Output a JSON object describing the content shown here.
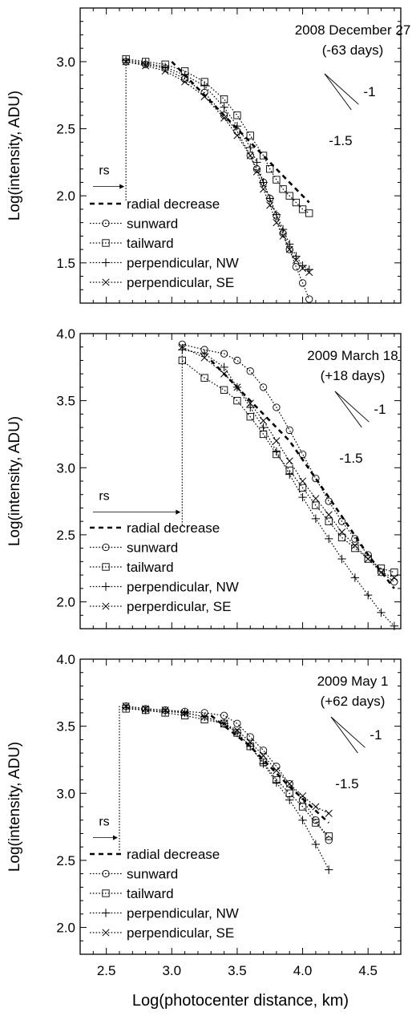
{
  "figure": {
    "xlabel": "Log(photocenter distance, km)",
    "x_ticks": [
      2.5,
      3.0,
      3.5,
      4.0,
      4.5
    ],
    "x_tick_labels": [
      "2.5",
      "3.0",
      "3.5",
      "4.0",
      "4.5"
    ]
  },
  "chart_data": [
    {
      "type": "line",
      "title": "2008 December 27",
      "subtitle": "(-63 days)",
      "ylabel": "Log(intensity, ADU)",
      "xlim": [
        2.3,
        4.75
      ],
      "ylim": [
        1.2,
        3.4
      ],
      "y_ticks": [
        1.5,
        2.0,
        2.5,
        3.0
      ],
      "y_tick_labels": [
        "1.5",
        "2.0",
        "2.5",
        "3.0"
      ],
      "grid": false,
      "legend_position": "bottom-left",
      "rs_label": "rs",
      "rs_x": 2.65,
      "slopes": [
        {
          "label": "-1",
          "slope": -1
        },
        {
          "label": "-1.5",
          "slope": -1.5
        }
      ],
      "series": [
        {
          "name": "radial decrease",
          "style": "dashed",
          "marker": "none",
          "x": [
            3.0,
            3.3,
            3.6,
            3.9,
            4.05
          ],
          "y": [
            3.0,
            2.7,
            2.4,
            2.1,
            1.95
          ]
        },
        {
          "name": "sunward",
          "style": "dotted",
          "marker": "circle",
          "x": [
            2.65,
            2.8,
            2.95,
            3.1,
            3.25,
            3.4,
            3.5,
            3.6,
            3.65,
            3.7,
            3.75,
            3.8,
            3.85,
            3.9,
            3.95,
            4.0,
            4.05
          ],
          "y": [
            3.0,
            2.98,
            2.95,
            2.87,
            2.77,
            2.6,
            2.48,
            2.3,
            2.2,
            2.1,
            1.98,
            1.85,
            1.72,
            1.6,
            1.47,
            1.35,
            1.23
          ]
        },
        {
          "name": "tailward",
          "style": "dotted",
          "marker": "square",
          "x": [
            2.65,
            2.8,
            2.95,
            3.1,
            3.25,
            3.4,
            3.5,
            3.6,
            3.7,
            3.75,
            3.8,
            3.85,
            3.9,
            3.95,
            4.0,
            4.05
          ],
          "y": [
            3.02,
            3.0,
            2.98,
            2.93,
            2.85,
            2.72,
            2.6,
            2.45,
            2.3,
            2.2,
            2.12,
            2.05,
            2.0,
            1.95,
            1.9,
            1.87
          ]
        },
        {
          "name": "perpendicular, NW",
          "style": "dotted",
          "marker": "plus",
          "x": [
            2.65,
            2.8,
            2.95,
            3.1,
            3.25,
            3.4,
            3.5,
            3.6,
            3.65,
            3.7,
            3.75,
            3.8,
            3.85,
            3.9,
            3.95,
            4.0,
            4.05
          ],
          "y": [
            3.01,
            2.99,
            2.96,
            2.9,
            2.82,
            2.66,
            2.52,
            2.36,
            2.25,
            2.1,
            1.98,
            1.86,
            1.75,
            1.64,
            1.55,
            1.48,
            1.45
          ]
        },
        {
          "name": "perpendicular, SE",
          "style": "dotted",
          "marker": "x",
          "x": [
            2.65,
            2.8,
            2.95,
            3.1,
            3.25,
            3.4,
            3.5,
            3.6,
            3.65,
            3.7,
            3.75,
            3.8,
            3.85,
            3.9,
            3.95,
            4.0,
            4.05
          ],
          "y": [
            3.0,
            2.97,
            2.93,
            2.85,
            2.74,
            2.58,
            2.45,
            2.3,
            2.18,
            2.05,
            1.93,
            1.8,
            1.7,
            1.6,
            1.52,
            1.46,
            1.43
          ]
        }
      ]
    },
    {
      "type": "line",
      "title": "2009 March 18",
      "subtitle": "(+18 days)",
      "ylabel": "Log(intensity, ADU)",
      "xlim": [
        2.3,
        4.75
      ],
      "ylim": [
        1.8,
        4.0
      ],
      "y_ticks": [
        2.0,
        2.5,
        3.0,
        3.5,
        4.0
      ],
      "y_tick_labels": [
        "2.0",
        "2.5",
        "3.0",
        "3.5",
        "4.0"
      ],
      "grid": false,
      "legend_position": "bottom-left",
      "rs_label": "rs",
      "rs_x": 3.08,
      "slopes": [
        {
          "label": "-1",
          "slope": -1
        },
        {
          "label": "-1.5",
          "slope": -1.5
        }
      ],
      "series": [
        {
          "name": "radial decrease",
          "style": "dashed",
          "marker": "none",
          "x": [
            3.3,
            3.6,
            3.9,
            4.2,
            4.5,
            4.7
          ],
          "y": [
            3.8,
            3.5,
            3.2,
            2.78,
            2.35,
            2.1
          ]
        },
        {
          "name": "sunward",
          "style": "dotted",
          "marker": "circle",
          "x": [
            3.08,
            3.25,
            3.4,
            3.5,
            3.6,
            3.7,
            3.8,
            3.9,
            4.0,
            4.1,
            4.2,
            4.3,
            4.4,
            4.5,
            4.6,
            4.7
          ],
          "y": [
            3.92,
            3.88,
            3.85,
            3.8,
            3.72,
            3.6,
            3.45,
            3.28,
            3.1,
            2.92,
            2.75,
            2.6,
            2.47,
            2.35,
            2.22,
            2.15
          ]
        },
        {
          "name": "tailward",
          "style": "dotted",
          "marker": "square",
          "x": [
            3.08,
            3.25,
            3.4,
            3.5,
            3.6,
            3.7,
            3.8,
            3.9,
            4.0,
            4.1,
            4.2,
            4.3,
            4.4,
            4.5,
            4.6,
            4.7
          ],
          "y": [
            3.8,
            3.67,
            3.58,
            3.5,
            3.38,
            3.25,
            3.1,
            2.98,
            2.85,
            2.72,
            2.6,
            2.48,
            2.4,
            2.32,
            2.25,
            2.22
          ]
        },
        {
          "name": "perpendicular, NW",
          "style": "dotted",
          "marker": "plus",
          "x": [
            3.08,
            3.25,
            3.4,
            3.5,
            3.6,
            3.7,
            3.8,
            3.9,
            4.0,
            4.1,
            4.2,
            4.3,
            4.4,
            4.5,
            4.6,
            4.7
          ],
          "y": [
            3.88,
            3.85,
            3.75,
            3.6,
            3.45,
            3.3,
            3.12,
            2.95,
            2.78,
            2.62,
            2.47,
            2.32,
            2.18,
            2.05,
            1.92,
            1.82
          ]
        },
        {
          "name": "perperdicular, SE",
          "style": "dotted",
          "marker": "x",
          "x": [
            3.08,
            3.25,
            3.4,
            3.5,
            3.6,
            3.7,
            3.8,
            3.9,
            4.0,
            4.1,
            4.2,
            4.3,
            4.4,
            4.5,
            4.6,
            4.7
          ],
          "y": [
            3.9,
            3.82,
            3.7,
            3.6,
            3.48,
            3.35,
            3.2,
            3.05,
            2.9,
            2.77,
            2.65,
            2.52,
            2.42,
            2.32,
            2.22,
            2.18
          ]
        }
      ]
    },
    {
      "type": "line",
      "title": "2009 May 1",
      "subtitle": "(+62 days)",
      "ylabel": "Log(intensity, ADU)",
      "xlim": [
        2.3,
        4.75
      ],
      "ylim": [
        1.8,
        4.0
      ],
      "y_ticks": [
        2.0,
        2.5,
        3.0,
        3.5,
        4.0
      ],
      "y_tick_labels": [
        "2.0",
        "2.5",
        "3.0",
        "3.5",
        "4.0"
      ],
      "grid": false,
      "legend_position": "bottom-left",
      "rs_label": "rs",
      "rs_x": 2.6,
      "slopes": [
        {
          "label": "-1",
          "slope": -1
        },
        {
          "label": "-1.5",
          "slope": -1.5
        }
      ],
      "series": [
        {
          "name": "radial decrease",
          "style": "dashed",
          "marker": "none",
          "x": [
            3.3,
            3.6,
            3.9,
            4.2
          ],
          "y": [
            3.58,
            3.35,
            3.05,
            2.78
          ]
        },
        {
          "name": "sunward",
          "style": "dotted",
          "marker": "circle",
          "x": [
            2.65,
            2.8,
            2.95,
            3.1,
            3.25,
            3.4,
            3.5,
            3.6,
            3.7,
            3.8,
            3.9,
            4.0,
            4.1,
            4.2
          ],
          "y": [
            3.65,
            3.63,
            3.62,
            3.61,
            3.6,
            3.58,
            3.52,
            3.42,
            3.32,
            3.2,
            3.07,
            2.95,
            2.8,
            2.65
          ]
        },
        {
          "name": "tailward",
          "style": "dotted",
          "marker": "square",
          "x": [
            2.65,
            2.8,
            2.95,
            3.1,
            3.25,
            3.4,
            3.5,
            3.6,
            3.7,
            3.8,
            3.9,
            4.0,
            4.1,
            4.2
          ],
          "y": [
            3.63,
            3.62,
            3.6,
            3.58,
            3.55,
            3.52,
            3.45,
            3.35,
            3.23,
            3.1,
            3.0,
            2.9,
            2.78,
            2.68
          ]
        },
        {
          "name": "perpendicular, NW",
          "style": "dotted",
          "marker": "plus",
          "x": [
            2.65,
            2.8,
            2.95,
            3.1,
            3.25,
            3.4,
            3.5,
            3.6,
            3.7,
            3.8,
            3.9,
            4.0,
            4.1,
            4.2
          ],
          "y": [
            3.64,
            3.62,
            3.61,
            3.6,
            3.57,
            3.52,
            3.45,
            3.35,
            3.22,
            3.08,
            2.95,
            2.8,
            2.62,
            2.43
          ]
        },
        {
          "name": "perpendicular, SE",
          "style": "dotted",
          "marker": "x",
          "x": [
            2.65,
            2.8,
            2.95,
            3.1,
            3.25,
            3.4,
            3.5,
            3.6,
            3.7,
            3.8,
            3.9,
            4.0,
            4.1,
            4.2
          ],
          "y": [
            3.65,
            3.63,
            3.62,
            3.6,
            3.57,
            3.52,
            3.47,
            3.38,
            3.28,
            3.17,
            3.07,
            2.98,
            2.9,
            2.85
          ]
        }
      ]
    }
  ]
}
